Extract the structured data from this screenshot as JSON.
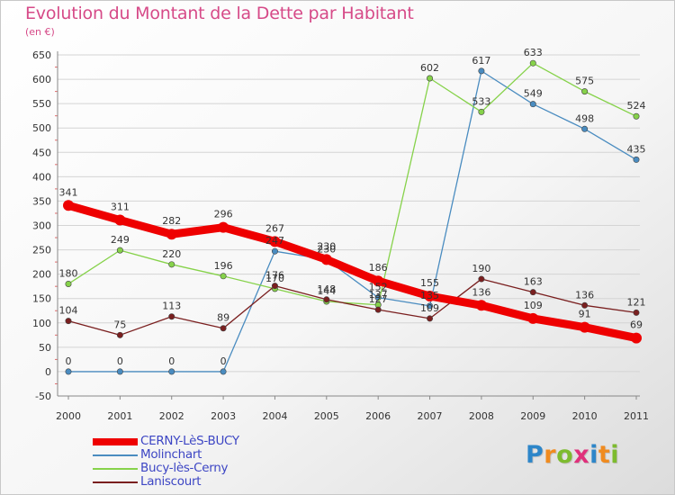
{
  "title": "Evolution du Montant de la Dette par Habitant",
  "unit": "(en €)",
  "logo": {
    "text": "Proxiti",
    "letters": [
      {
        "ch": "P",
        "color": "#2d86c9"
      },
      {
        "ch": "r",
        "color": "#f08b1f"
      },
      {
        "ch": "o",
        "color": "#7dbb2e"
      },
      {
        "ch": "x",
        "color": "#e0307b"
      },
      {
        "ch": "i",
        "color": "#2d86c9"
      },
      {
        "ch": "t",
        "color": "#f08b1f"
      },
      {
        "ch": "i",
        "color": "#7dbb2e"
      }
    ]
  },
  "chart_data": {
    "type": "line",
    "title": "Evolution du Montant de la Dette par Habitant",
    "ylabel": "(en €)",
    "xlabel": "",
    "x": [
      "2000",
      "2001",
      "2002",
      "2003",
      "2004",
      "2005",
      "2006",
      "2007",
      "2008",
      "2009",
      "2010",
      "2011"
    ],
    "ylim": [
      -50,
      650
    ],
    "yticks": [
      "-50",
      "0",
      "50",
      "100",
      "150",
      "200",
      "250",
      "300",
      "350",
      "400",
      "450",
      "500",
      "550",
      "600",
      "650"
    ],
    "grid": "horizontal",
    "legend_position": "bottom-left",
    "series": [
      {
        "name": "CERNY-LèS-BUCY",
        "color": "#ee0000",
        "values": [
          341,
          311,
          282,
          296,
          267,
          230,
          186,
          155,
          136,
          109,
          91,
          69
        ],
        "labels": [
          "341",
          "311",
          "282",
          "296",
          "267",
          "230",
          "186",
          "155",
          "136",
          "109",
          "91",
          "69"
        ]
      },
      {
        "name": "Molinchart",
        "color": "#4a8cc0",
        "values": [
          0,
          0,
          0,
          0,
          247,
          230,
          152,
          135,
          617,
          549,
          498,
          435
        ],
        "labels": [
          "0",
          "0",
          "0",
          "0",
          "247",
          "230",
          "152",
          "135",
          "617",
          "549",
          "498",
          "435"
        ]
      },
      {
        "name": "Bucy-lès-Cerny",
        "color": "#86d24a",
        "values": [
          180,
          249,
          220,
          196,
          170,
          144,
          137,
          602,
          533,
          633,
          575,
          524
        ],
        "labels": [
          "180",
          "249",
          "220",
          "196",
          "170",
          "144",
          "137",
          "602",
          "533",
          "633",
          "575",
          "524"
        ]
      },
      {
        "name": "Laniscourt",
        "color": "#7a1f1f",
        "values": [
          104,
          75,
          113,
          89,
          176,
          148,
          127,
          109,
          190,
          163,
          136,
          121
        ],
        "labels": [
          "104",
          "75",
          "113",
          "89",
          "176",
          "148",
          "127",
          "109",
          "190",
          "163",
          "136",
          "121"
        ]
      }
    ]
  }
}
